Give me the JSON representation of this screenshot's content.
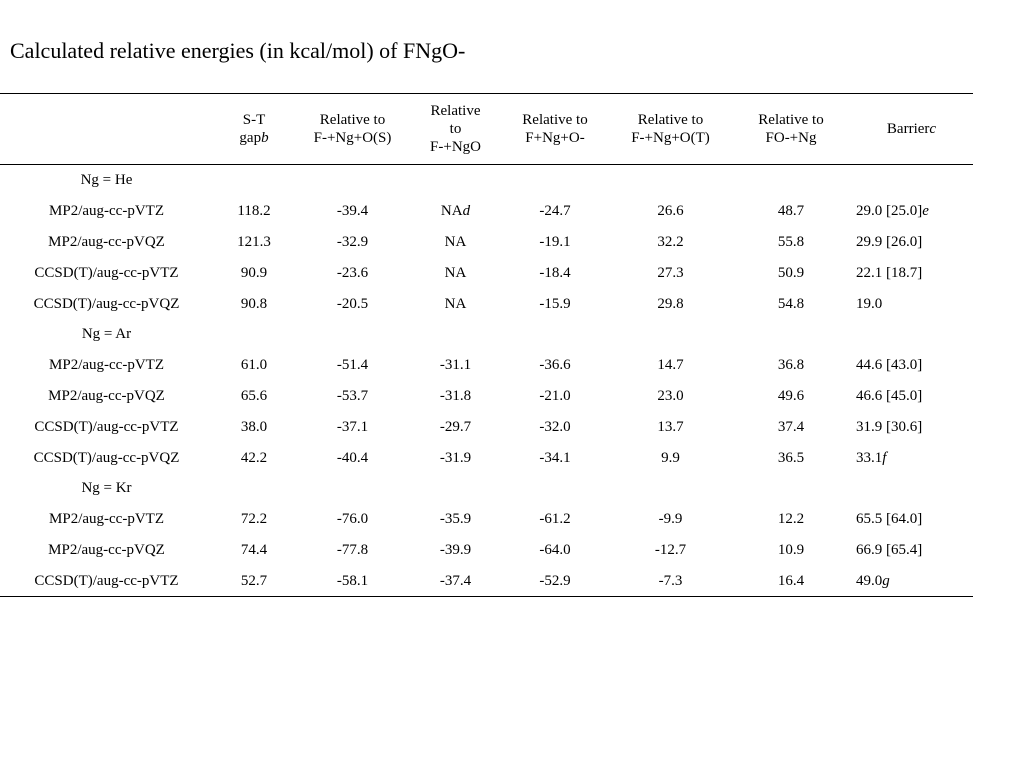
{
  "title": "Calculated relative energies (in kcal/mol) of FNgO-",
  "headers": {
    "method": "",
    "st_gap": {
      "line1": "S-T",
      "line2": "gap",
      "note": "b"
    },
    "rel_s": {
      "line1": "Relative to",
      "line2": "F-+Ng+O(S)"
    },
    "rel_ngo": {
      "line1": "Relative",
      "line2": "to",
      "line3": "F-+NgO"
    },
    "rel_fngo": {
      "line1": "Relative to",
      "line2": "F+Ng+O-"
    },
    "rel_t": {
      "line1": "Relative to",
      "line2": "F-+Ng+O(T)"
    },
    "rel_fo": {
      "line1": "Relative to",
      "line2": "FO-+Ng"
    },
    "barrier": {
      "text": "Barrier",
      "note": "c"
    }
  },
  "groups": [
    {
      "label": "Ng = He",
      "rows": [
        {
          "method": "MP2/aug-cc-pVTZ",
          "st_gap": "118.2",
          "rel_s": "-39.4",
          "rel_ngo": "NA",
          "rel_ngo_note": "d",
          "rel_fngo": "-24.7",
          "rel_t": "26.6",
          "rel_fo": "48.7",
          "barrier": "29.0 [25.0]",
          "barrier_note": "e"
        },
        {
          "method": "MP2/aug-cc-pVQZ",
          "st_gap": "121.3",
          "rel_s": "-32.9",
          "rel_ngo": "NA",
          "rel_ngo_note": "",
          "rel_fngo": "-19.1",
          "rel_t": "32.2",
          "rel_fo": "55.8",
          "barrier": "29.9 [26.0]",
          "barrier_note": ""
        },
        {
          "method": "CCSD(T)/aug-cc-pVTZ",
          "st_gap": "90.9",
          "rel_s": "-23.6",
          "rel_ngo": "NA",
          "rel_ngo_note": "",
          "rel_fngo": "-18.4",
          "rel_t": "27.3",
          "rel_fo": "50.9",
          "barrier": "22.1 [18.7]",
          "barrier_note": ""
        },
        {
          "method": "CCSD(T)/aug-cc-pVQZ",
          "st_gap": "90.8",
          "rel_s": "-20.5",
          "rel_ngo": "NA",
          "rel_ngo_note": "",
          "rel_fngo": "-15.9",
          "rel_t": "29.8",
          "rel_fo": "54.8",
          "barrier": "19.0",
          "barrier_note": ""
        }
      ]
    },
    {
      "label": "Ng = Ar",
      "rows": [
        {
          "method": "MP2/aug-cc-pVTZ",
          "st_gap": "61.0",
          "rel_s": "-51.4",
          "rel_ngo": "-31.1",
          "rel_ngo_note": "",
          "rel_fngo": "-36.6",
          "rel_t": "14.7",
          "rel_fo": "36.8",
          "barrier": "44.6 [43.0]",
          "barrier_note": ""
        },
        {
          "method": "MP2/aug-cc-pVQZ",
          "st_gap": "65.6",
          "rel_s": "-53.7",
          "rel_ngo": "-31.8",
          "rel_ngo_note": "",
          "rel_fngo": "-21.0",
          "rel_t": "23.0",
          "rel_fo": "49.6",
          "barrier": "46.6 [45.0]",
          "barrier_note": ""
        },
        {
          "method": "CCSD(T)/aug-cc-pVTZ",
          "st_gap": "38.0",
          "rel_s": "-37.1",
          "rel_ngo": "-29.7",
          "rel_ngo_note": "",
          "rel_fngo": "-32.0",
          "rel_t": "13.7",
          "rel_fo": "37.4",
          "barrier": "31.9 [30.6]",
          "barrier_note": ""
        },
        {
          "method": "CCSD(T)/aug-cc-pVQZ",
          "st_gap": "42.2",
          "rel_s": "-40.4",
          "rel_ngo": "-31.9",
          "rel_ngo_note": "",
          "rel_fngo": "-34.1",
          "rel_t": "9.9",
          "rel_fo": "36.5",
          "barrier": "33.1",
          "barrier_note": "f"
        }
      ]
    },
    {
      "label": "Ng = Kr",
      "rows": [
        {
          "method": "MP2/aug-cc-pVTZ",
          "st_gap": "72.2",
          "rel_s": "-76.0",
          "rel_ngo": "-35.9",
          "rel_ngo_note": "",
          "rel_fngo": "-61.2",
          "rel_t": "-9.9",
          "rel_fo": "12.2",
          "barrier": "65.5 [64.0]",
          "barrier_note": ""
        },
        {
          "method": "MP2/aug-cc-pVQZ",
          "st_gap": "74.4",
          "rel_s": "-77.8",
          "rel_ngo": "-39.9",
          "rel_ngo_note": "",
          "rel_fngo": "-64.0",
          "rel_t": "-12.7",
          "rel_fo": "10.9",
          "barrier": "66.9 [65.4]",
          "barrier_note": ""
        },
        {
          "method": "CCSD(T)/aug-cc-pVTZ",
          "st_gap": "52.7",
          "rel_s": "-58.1",
          "rel_ngo": "-37.4",
          "rel_ngo_note": "",
          "rel_fngo": "-52.9",
          "rel_t": "-7.3",
          "rel_fo": "16.4",
          "barrier": "49.0",
          "barrier_note": "g"
        }
      ]
    }
  ]
}
